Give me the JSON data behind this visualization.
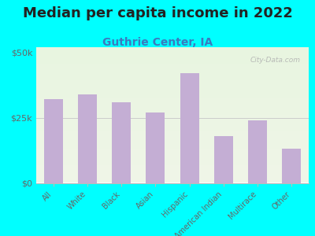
{
  "title": "Median per capita income in 2022",
  "subtitle": "Guthrie Center, IA",
  "categories": [
    "All",
    "White",
    "Black",
    "Asian",
    "Hispanic",
    "American Indian",
    "Multirace",
    "Other"
  ],
  "values": [
    32000,
    34000,
    31000,
    27000,
    42000,
    18000,
    24000,
    13000
  ],
  "bar_color": "#c4aed4",
  "background_outer": "#00FFFF",
  "grad_top": "#f0f5e8",
  "grad_bottom": "#e8f5e0",
  "title_color": "#222222",
  "subtitle_color": "#3a7abf",
  "axis_label_color": "#666666",
  "ytick_labels": [
    "$0",
    "$25k",
    "$50k"
  ],
  "ytick_values": [
    0,
    25000,
    50000
  ],
  "ylim": [
    0,
    52000
  ],
  "watermark": "City-Data.com",
  "title_fontsize": 13,
  "subtitle_fontsize": 10
}
